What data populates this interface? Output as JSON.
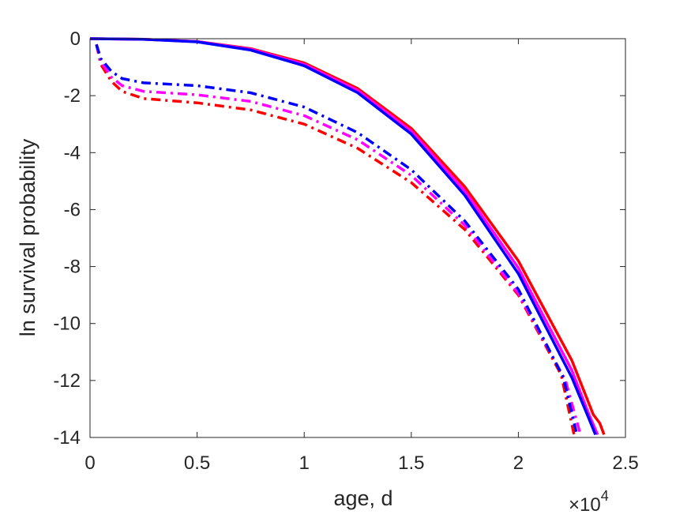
{
  "chart_data": {
    "type": "line",
    "title": "",
    "xlabel": "age, d",
    "ylabel": "ln survival probability",
    "x_multiplier_label": {
      "base": "×10",
      "exponent": "4"
    },
    "xlim": [
      0,
      2.5
    ],
    "ylim": [
      -14,
      0
    ],
    "xticks": [
      0,
      0.5,
      1,
      1.5,
      2,
      2.5
    ],
    "yticks": [
      0,
      -2,
      -4,
      -6,
      -8,
      -10,
      -12,
      -14
    ],
    "xtick_labels": [
      "0",
      "0.5",
      "1",
      "1.5",
      "2",
      "2.5"
    ],
    "ytick_labels": [
      "0",
      "-2",
      "-4",
      "-6",
      "-8",
      "-10",
      "-12",
      "-14"
    ],
    "grid": false,
    "box": true,
    "series": [
      {
        "color": "#ff0000",
        "style": "solid",
        "x": [
          0,
          0.25,
          0.5,
          0.75,
          1.0,
          1.25,
          1.5,
          1.75,
          2.0,
          2.25,
          2.35,
          2.38,
          2.4
        ],
        "y": [
          0,
          -0.02,
          -0.1,
          -0.35,
          -0.85,
          -1.75,
          -3.15,
          -5.2,
          -7.8,
          -11.3,
          -13.2,
          -13.5,
          -13.9
        ]
      },
      {
        "color": "#ff00ff",
        "style": "solid",
        "x": [
          0,
          0.25,
          0.5,
          0.75,
          1.0,
          1.25,
          1.5,
          1.75,
          2.0,
          2.25,
          2.33,
          2.37
        ],
        "y": [
          0,
          -0.02,
          -0.1,
          -0.37,
          -0.9,
          -1.82,
          -3.25,
          -5.35,
          -8.05,
          -11.65,
          -13.2,
          -13.9
        ]
      },
      {
        "color": "#0000ff",
        "style": "solid",
        "x": [
          0,
          0.25,
          0.5,
          0.75,
          1.0,
          1.25,
          1.5,
          1.75,
          2.0,
          2.25,
          2.33,
          2.36
        ],
        "y": [
          0,
          -0.02,
          -0.11,
          -0.4,
          -0.95,
          -1.9,
          -3.35,
          -5.5,
          -8.25,
          -11.9,
          -13.35,
          -13.9
        ]
      },
      {
        "color": "#ff0000",
        "style": "dashdot",
        "x": [
          0.03,
          0.05,
          0.1,
          0.15,
          0.25,
          0.5,
          0.75,
          1.0,
          1.25,
          1.5,
          1.75,
          2.0,
          2.2,
          2.26
        ],
        "y": [
          -0.2,
          -0.9,
          -1.5,
          -1.85,
          -2.1,
          -2.25,
          -2.5,
          -3.0,
          -3.85,
          -5.05,
          -6.7,
          -9.0,
          -11.8,
          -13.9
        ]
      },
      {
        "color": "#ff00ff",
        "style": "dashdot",
        "x": [
          0.03,
          0.05,
          0.1,
          0.15,
          0.25,
          0.5,
          0.75,
          1.0,
          1.25,
          1.5,
          1.75,
          2.0,
          2.22,
          2.29
        ],
        "y": [
          -0.2,
          -0.8,
          -1.35,
          -1.65,
          -1.85,
          -1.97,
          -2.2,
          -2.7,
          -3.55,
          -4.8,
          -6.55,
          -8.95,
          -12.0,
          -13.9
        ]
      },
      {
        "color": "#0000ff",
        "style": "dashdot",
        "x": [
          0.03,
          0.05,
          0.1,
          0.15,
          0.25,
          0.5,
          0.75,
          1.0,
          1.25,
          1.5,
          1.75,
          2.0,
          2.21,
          2.27
        ],
        "y": [
          -0.2,
          -0.7,
          -1.15,
          -1.4,
          -1.55,
          -1.65,
          -1.9,
          -2.4,
          -3.3,
          -4.6,
          -6.4,
          -8.8,
          -11.9,
          -13.8
        ]
      }
    ]
  }
}
